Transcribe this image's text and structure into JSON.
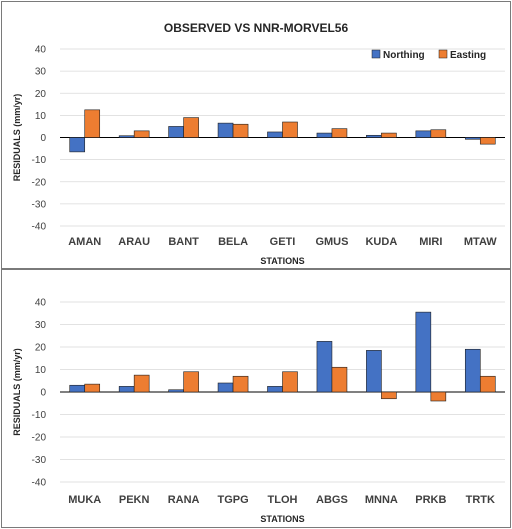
{
  "colors": {
    "northing": "#4472C4",
    "easting": "#ED7D31",
    "grid": "#d9d9d9",
    "zero_line": "#000000"
  },
  "chart_data": [
    {
      "type": "bar",
      "title": "OBSERVED VS NNR-MORVEL56",
      "xlabel": "STATIONS",
      "ylabel": "RESIDUALS (mm/yr)",
      "ylim": [
        -40,
        40
      ],
      "yticks": [
        40,
        30,
        20,
        10,
        0,
        -10,
        -20,
        -30,
        -40
      ],
      "grid": true,
      "legend_position": "top-right",
      "categories": [
        "AMAN",
        "ARAU",
        "BANT",
        "BELA",
        "GETI",
        "GMUS",
        "KUDA",
        "MIRI",
        "MTAW"
      ],
      "series": [
        {
          "name": "Northing",
          "values": [
            -6.5,
            0.8,
            5.0,
            6.5,
            2.5,
            2.0,
            1.0,
            3.0,
            -0.8
          ]
        },
        {
          "name": "Easting",
          "values": [
            12.5,
            3.0,
            9.0,
            6.0,
            7.0,
            4.0,
            2.0,
            3.5,
            -3.0
          ]
        }
      ]
    },
    {
      "type": "bar",
      "title": "",
      "xlabel": "STATIONS",
      "ylabel": "RESIDUALS (mm/yr)",
      "ylim": [
        -40,
        40
      ],
      "yticks": [
        40,
        30,
        20,
        10,
        0,
        -10,
        -20,
        -30,
        -40
      ],
      "grid": true,
      "categories": [
        "MUKA",
        "PEKN",
        "RANA",
        "TGPG",
        "TLOH",
        "ABGS",
        "MNNA",
        "PRKB",
        "TRTK"
      ],
      "series": [
        {
          "values": [
            3.0,
            2.5,
            1.0,
            4.0,
            2.5,
            22.5,
            18.5,
            35.5,
            19.0
          ]
        },
        {
          "values": [
            3.5,
            7.5,
            9.0,
            7.0,
            9.0,
            11.0,
            -3.0,
            -4.0,
            7.0
          ]
        }
      ]
    }
  ]
}
